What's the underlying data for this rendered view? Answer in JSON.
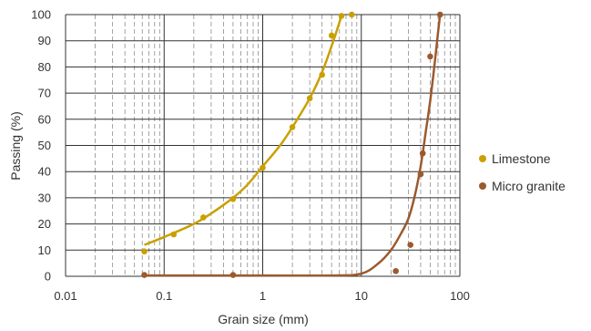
{
  "chart_data": {
    "type": "scatter",
    "x_scale": "log",
    "xlabel": "Grain size (mm)",
    "ylabel": "Passing (%)",
    "xlim": [
      0.01,
      100
    ],
    "ylim": [
      0,
      100
    ],
    "x_ticks": [
      "0.01",
      "0.1",
      "1",
      "10",
      "100"
    ],
    "y_ticks": [
      "0",
      "10",
      "20",
      "30",
      "40",
      "50",
      "60",
      "70",
      "80",
      "90",
      "100"
    ],
    "grid": "major solid, minor dashed vertical",
    "legend_position": "right",
    "series": [
      {
        "name": "Limestone",
        "color": "#C9A000",
        "points": [
          [
            0.063,
            9.5
          ],
          [
            0.125,
            16
          ],
          [
            0.25,
            22.5
          ],
          [
            0.5,
            29.5
          ],
          [
            1,
            41.5
          ],
          [
            2,
            57
          ],
          [
            3,
            68
          ],
          [
            4,
            77
          ],
          [
            5,
            92
          ],
          [
            6.3,
            99.5
          ],
          [
            8,
            100
          ]
        ],
        "curve": [
          [
            0.063,
            12
          ],
          [
            0.1,
            15
          ],
          [
            0.2,
            20
          ],
          [
            0.3,
            24
          ],
          [
            0.5,
            30
          ],
          [
            0.7,
            35
          ],
          [
            1,
            42
          ],
          [
            1.5,
            50
          ],
          [
            2,
            57
          ],
          [
            3,
            68
          ],
          [
            4,
            78
          ],
          [
            5,
            88
          ],
          [
            6,
            97
          ],
          [
            6.3,
            100
          ]
        ]
      },
      {
        "name": "Micro granite",
        "color": "#9B5A2E",
        "points": [
          [
            0.063,
            0.5
          ],
          [
            0.5,
            0.5
          ],
          [
            22.4,
            2
          ],
          [
            31.5,
            12
          ],
          [
            40,
            39
          ],
          [
            42,
            47
          ],
          [
            50,
            84
          ],
          [
            63,
            100
          ]
        ],
        "curve": [
          [
            0.063,
            0.3
          ],
          [
            1,
            0.3
          ],
          [
            5,
            0.3
          ],
          [
            10,
            1
          ],
          [
            15,
            5
          ],
          [
            20,
            10
          ],
          [
            25,
            16
          ],
          [
            30,
            22
          ],
          [
            35,
            31
          ],
          [
            40,
            42
          ],
          [
            45,
            55
          ],
          [
            50,
            67
          ],
          [
            55,
            80
          ],
          [
            60,
            93
          ],
          [
            63,
            100
          ]
        ]
      }
    ]
  }
}
